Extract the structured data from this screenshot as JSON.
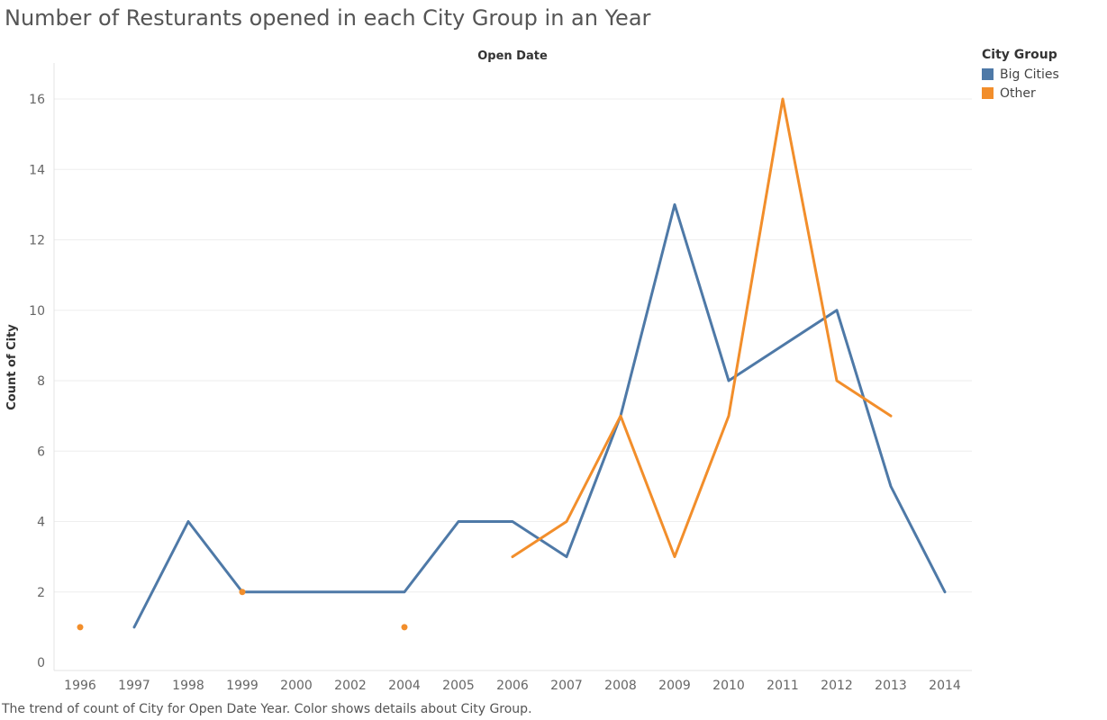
{
  "title": "Number of Resturants opened in each City Group in an Year",
  "caption": "The trend of count of City for Open Date Year.  Color shows details about City Group.",
  "legend": {
    "title": "City Group",
    "items": [
      {
        "label": "Big Cities",
        "color": "#4e79a7"
      },
      {
        "label": "Other",
        "color": "#f28e2b"
      }
    ]
  },
  "chart_data": {
    "type": "line",
    "title": "Number of Resturants opened in each City Group in an Year",
    "xlabel": "Open Date",
    "ylabel": "Count of City",
    "categories": [
      "1996",
      "1997",
      "1998",
      "1999",
      "2000",
      "2002",
      "2004",
      "2005",
      "2006",
      "2007",
      "2008",
      "2009",
      "2010",
      "2011",
      "2012",
      "2013",
      "2014"
    ],
    "ylim": [
      0,
      17
    ],
    "yticks": [
      0,
      2,
      4,
      6,
      8,
      10,
      12,
      14,
      16
    ],
    "grid": true,
    "legend_position": "top-right",
    "series": [
      {
        "name": "Big Cities",
        "color": "#4e79a7",
        "values": [
          null,
          1,
          4,
          2,
          2,
          2,
          2,
          4,
          4,
          3,
          7,
          13,
          8,
          9,
          10,
          5,
          2
        ]
      },
      {
        "name": "Other",
        "color": "#f28e2b",
        "values": [
          1,
          null,
          null,
          2,
          null,
          null,
          1,
          null,
          3,
          4,
          7,
          3,
          7,
          16,
          8,
          7,
          null
        ]
      }
    ]
  }
}
